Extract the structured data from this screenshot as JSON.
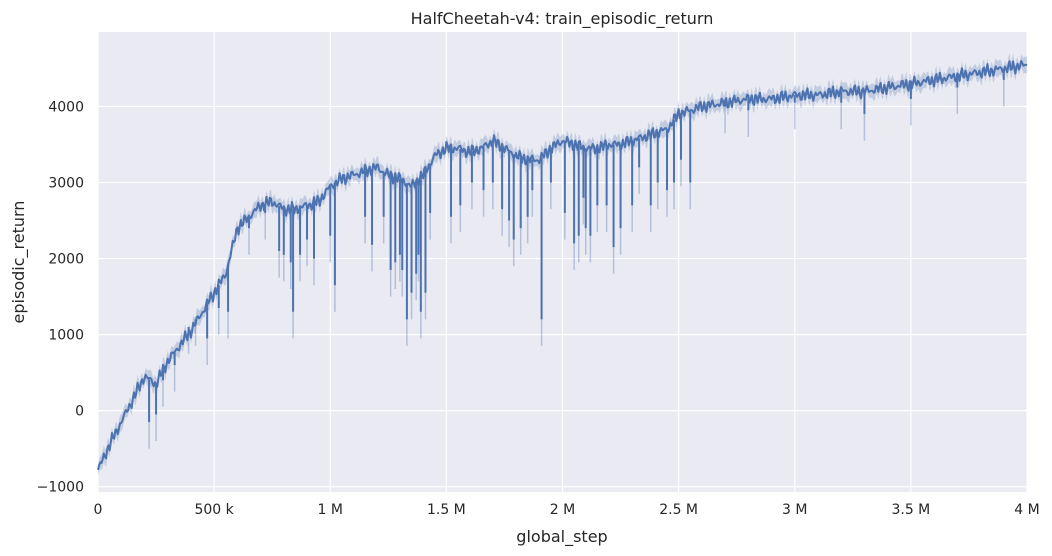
{
  "chart_data": {
    "type": "line",
    "title": "HalfCheetah-v4: train_episodic_return",
    "xlabel": "global_step",
    "ylabel": "episodic_return",
    "xlim": [
      0,
      4000000
    ],
    "ylim": [
      -1070,
      4980
    ],
    "grid": true,
    "legend": "none",
    "x_ticks": [
      {
        "value": 0,
        "label": "0"
      },
      {
        "value": 500000,
        "label": "500 k"
      },
      {
        "value": 1000000,
        "label": "1 M"
      },
      {
        "value": 1500000,
        "label": "1.5 M"
      },
      {
        "value": 2000000,
        "label": "2 M"
      },
      {
        "value": 2500000,
        "label": "2.5 M"
      },
      {
        "value": 3000000,
        "label": "3 M"
      },
      {
        "value": 3500000,
        "label": "3.5 M"
      },
      {
        "value": 4000000,
        "label": "4 M"
      }
    ],
    "y_ticks": [
      {
        "value": -1000,
        "label": "−1000"
      },
      {
        "value": 0,
        "label": "0"
      },
      {
        "value": 1000,
        "label": "1000"
      },
      {
        "value": 2000,
        "label": "2000"
      },
      {
        "value": 3000,
        "label": "3000"
      },
      {
        "value": 4000,
        "label": "4000"
      }
    ],
    "colors": {
      "line": "#4c72b0",
      "band": "#4c72b0",
      "background": "#eaeaf2",
      "grid": "#ffffff"
    },
    "series": [
      {
        "x": [
          0,
          50000,
          100000,
          150000,
          200000,
          250000,
          300000,
          350000,
          400000,
          450000,
          500000,
          550000,
          600000,
          650000,
          700000,
          750000,
          800000,
          850000,
          900000,
          950000,
          1000000,
          1050000,
          1100000,
          1150000,
          1200000,
          1250000,
          1300000,
          1350000,
          1400000,
          1450000,
          1500000,
          1550000,
          1600000,
          1650000,
          1700000,
          1750000,
          1800000,
          1850000,
          1900000,
          1950000,
          2000000,
          2050000,
          2100000,
          2150000,
          2200000,
          2250000,
          2300000,
          2350000,
          2400000,
          2450000,
          2500000,
          2550000,
          2600000,
          2700000,
          2800000,
          2900000,
          3000000,
          3100000,
          3200000,
          3300000,
          3400000,
          3500000,
          3600000,
          3700000,
          3800000,
          3900000,
          4000000
        ],
        "y": [
          -780,
          -450,
          -150,
          150,
          450,
          350,
          650,
          850,
          1050,
          1300,
          1550,
          1800,
          2400,
          2550,
          2700,
          2750,
          2650,
          2650,
          2700,
          2750,
          2950,
          3050,
          3100,
          3150,
          3200,
          3100,
          3050,
          2950,
          3100,
          3350,
          3450,
          3450,
          3400,
          3450,
          3550,
          3450,
          3350,
          3300,
          3300,
          3450,
          3550,
          3500,
          3450,
          3450,
          3500,
          3500,
          3550,
          3600,
          3650,
          3700,
          3900,
          3950,
          4000,
          4050,
          4100,
          4100,
          4150,
          4150,
          4200,
          4200,
          4250,
          4300,
          4350,
          4400,
          4450,
          4500,
          4550
        ],
        "dips": [
          [
            220000,
            -150
          ],
          [
            250000,
            -50
          ],
          [
            280000,
            400
          ],
          [
            330000,
            600
          ],
          [
            390000,
            1100
          ],
          [
            420000,
            1200
          ],
          [
            470000,
            950
          ],
          [
            520000,
            1350
          ],
          [
            560000,
            1300
          ],
          [
            650000,
            2400
          ],
          [
            720000,
            2600
          ],
          [
            780000,
            2100
          ],
          [
            800000,
            2050
          ],
          [
            830000,
            1950
          ],
          [
            840000,
            1300
          ],
          [
            870000,
            2050
          ],
          [
            900000,
            2250
          ],
          [
            930000,
            2000
          ],
          [
            1000000,
            2300
          ],
          [
            1020000,
            1650
          ],
          [
            1150000,
            2550
          ],
          [
            1180000,
            2180
          ],
          [
            1230000,
            2550
          ],
          [
            1260000,
            1850
          ],
          [
            1280000,
            1950
          ],
          [
            1300000,
            2050
          ],
          [
            1310000,
            1850
          ],
          [
            1330000,
            1200
          ],
          [
            1350000,
            1550
          ],
          [
            1370000,
            1800
          ],
          [
            1380000,
            2050
          ],
          [
            1390000,
            1300
          ],
          [
            1410000,
            1550
          ],
          [
            1430000,
            2600
          ],
          [
            1520000,
            2550
          ],
          [
            1560000,
            2700
          ],
          [
            1610000,
            3000
          ],
          [
            1660000,
            2900
          ],
          [
            1700000,
            3000
          ],
          [
            1740000,
            2650
          ],
          [
            1770000,
            2500
          ],
          [
            1790000,
            2250
          ],
          [
            1820000,
            2400
          ],
          [
            1850000,
            2550
          ],
          [
            1870000,
            2900
          ],
          [
            1910000,
            1200
          ],
          [
            1950000,
            3000
          ],
          [
            2010000,
            2600
          ],
          [
            2050000,
            2200
          ],
          [
            2070000,
            2300
          ],
          [
            2090000,
            2800
          ],
          [
            2100000,
            2400
          ],
          [
            2120000,
            2300
          ],
          [
            2150000,
            2700
          ],
          [
            2190000,
            2700
          ],
          [
            2220000,
            2150
          ],
          [
            2250000,
            2400
          ],
          [
            2300000,
            2700
          ],
          [
            2330000,
            3200
          ],
          [
            2380000,
            2700
          ],
          [
            2410000,
            3000
          ],
          [
            2450000,
            2900
          ],
          [
            2480000,
            3000
          ],
          [
            2510000,
            3300
          ],
          [
            2550000,
            3000
          ],
          [
            2700000,
            4000
          ],
          [
            2800000,
            3950
          ],
          [
            3000000,
            4050
          ],
          [
            3200000,
            4050
          ],
          [
            3300000,
            3900
          ],
          [
            3500000,
            4100
          ],
          [
            3700000,
            4250
          ],
          [
            3900000,
            4350
          ]
        ]
      }
    ]
  }
}
